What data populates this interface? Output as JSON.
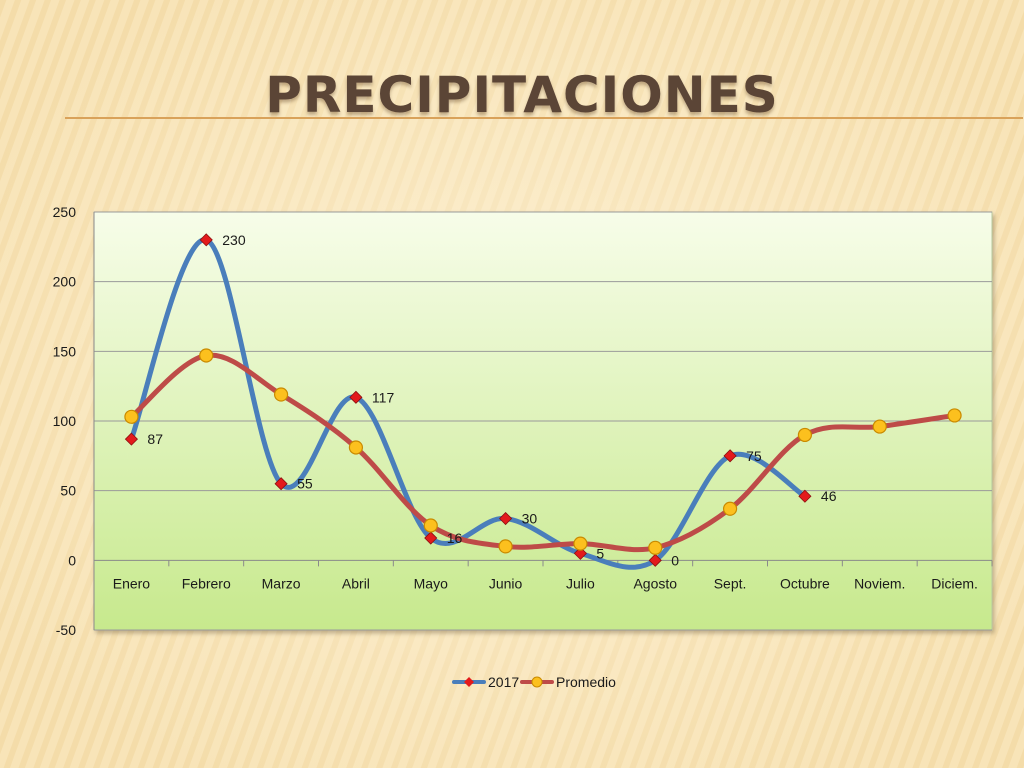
{
  "slide": {
    "title": "PRECIPITACIONES"
  },
  "colors": {
    "series_2017": "#4a7ebb",
    "series_promedio": "#be4b48",
    "marker_2017": "#e31a1c",
    "marker_promedio": "#fcc01e",
    "plot_top": "#f7fde9",
    "plot_bottom": "#c7e98d"
  },
  "chart_data": {
    "type": "line",
    "smooth": true,
    "title": "",
    "xlabel": "",
    "ylabel": "",
    "ylim": [
      -50,
      250
    ],
    "yticks": [
      -50,
      0,
      50,
      100,
      150,
      200,
      250
    ],
    "grid": true,
    "legend_position": "bottom",
    "categories": [
      "Enero",
      "Febrero",
      "Marzo",
      "Abril",
      "Mayo",
      "Junio",
      "Julio",
      "Agosto",
      "Sept.",
      "Octubre",
      "Noviem.",
      "Diciem."
    ],
    "series": [
      {
        "name": "2017",
        "values": [
          87,
          230,
          55,
          117,
          16,
          30,
          5,
          0,
          75,
          46,
          null,
          null
        ],
        "marker": "diamond",
        "data_labels": true
      },
      {
        "name": "Promedio",
        "values": [
          103,
          147,
          119,
          81,
          25,
          10,
          12,
          9,
          37,
          90,
          96,
          104
        ],
        "marker": "circle",
        "data_labels": false
      }
    ]
  }
}
